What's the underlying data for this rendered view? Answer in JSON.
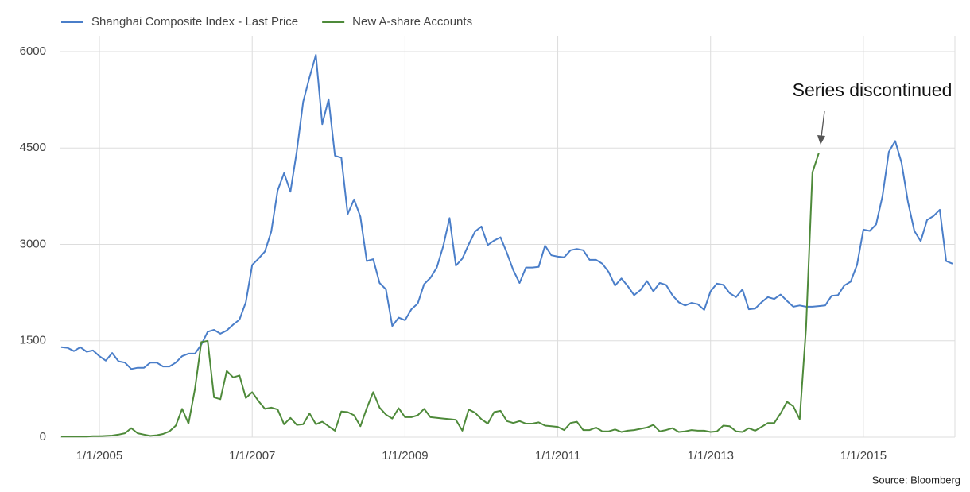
{
  "chart_data": {
    "type": "line",
    "categories": [
      null,
      null,
      null,
      null,
      null,
      null,
      "1/1/2005",
      null,
      null,
      null,
      null,
      null,
      null,
      null,
      null,
      null,
      null,
      null,
      null,
      null,
      null,
      null,
      null,
      null,
      null,
      null,
      null,
      null,
      null,
      null,
      "1/1/2007",
      null,
      null,
      null,
      null,
      null,
      null,
      null,
      null,
      null,
      null,
      null,
      null,
      null,
      null,
      null,
      null,
      null,
      null,
      null,
      null,
      null,
      null,
      null,
      "1/1/2009",
      null,
      null,
      null,
      null,
      null,
      null,
      null,
      null,
      null,
      null,
      null,
      null,
      null,
      null,
      null,
      null,
      null,
      null,
      null,
      null,
      null,
      null,
      null,
      "1/1/2011",
      null,
      null,
      null,
      null,
      null,
      null,
      null,
      null,
      null,
      null,
      null,
      null,
      null,
      null,
      null,
      null,
      null,
      null,
      null,
      null,
      null,
      null,
      null,
      "1/1/2013",
      null,
      null,
      null,
      null,
      null,
      null,
      null,
      null,
      null,
      null,
      null,
      null,
      null,
      null,
      null,
      null,
      null,
      null,
      null,
      null,
      null,
      null,
      null,
      "1/1/2015",
      null,
      null,
      null,
      null,
      null,
      null,
      null,
      null,
      null,
      null,
      null,
      null,
      null,
      null
    ],
    "series": [
      {
        "name": "Shanghai Composite Index - Last Price",
        "color": "#4a7ec9",
        "values": [
          1400,
          1390,
          1340,
          1400,
          1330,
          1350,
          1260,
          1190,
          1310,
          1180,
          1160,
          1060,
          1080,
          1080,
          1160,
          1160,
          1100,
          1100,
          1160,
          1260,
          1300,
          1300,
          1440,
          1640,
          1670,
          1610,
          1660,
          1750,
          1830,
          2100,
          2680,
          2780,
          2890,
          3200,
          3840,
          4110,
          3820,
          4450,
          5220,
          5600,
          5950,
          4870,
          5260,
          4380,
          4350,
          3470,
          3700,
          3430,
          2740,
          2770,
          2400,
          2300,
          1730,
          1860,
          1820,
          1990,
          2080,
          2380,
          2480,
          2640,
          2970,
          3410,
          2670,
          2780,
          3000,
          3200,
          3280,
          2990,
          3060,
          3110,
          2870,
          2600,
          2400,
          2640,
          2640,
          2650,
          2980,
          2830,
          2810,
          2800,
          2910,
          2930,
          2910,
          2760,
          2760,
          2700,
          2570,
          2360,
          2470,
          2350,
          2210,
          2290,
          2430,
          2270,
          2400,
          2370,
          2210,
          2100,
          2050,
          2090,
          2070,
          1980,
          2270,
          2390,
          2370,
          2240,
          2180,
          2300,
          1990,
          2000,
          2100,
          2180,
          2150,
          2220,
          2120,
          2030,
          2050,
          2030,
          2030,
          2040,
          2050,
          2200,
          2210,
          2360,
          2420,
          2680,
          3230,
          3210,
          3310,
          3750,
          4440,
          4610,
          4270,
          3660,
          3210,
          3050,
          3380,
          3440,
          3540,
          2740,
          2700
        ]
      },
      {
        "name": "New A-share Accounts",
        "color": "#4e8a3a",
        "values": [
          10,
          10,
          10,
          10,
          10,
          15,
          15,
          20,
          25,
          40,
          60,
          140,
          60,
          40,
          20,
          30,
          50,
          90,
          180,
          440,
          210,
          750,
          1480,
          1500,
          620,
          590,
          1030,
          930,
          960,
          610,
          700,
          560,
          440,
          460,
          430,
          200,
          300,
          190,
          200,
          370,
          200,
          240,
          170,
          100,
          400,
          390,
          340,
          170,
          450,
          700,
          460,
          350,
          290,
          450,
          310,
          310,
          340,
          440,
          310,
          300,
          290,
          280,
          270,
          100,
          430,
          380,
          280,
          210,
          390,
          410,
          250,
          220,
          250,
          210,
          210,
          230,
          180,
          170,
          160,
          110,
          220,
          240,
          110,
          110,
          150,
          90,
          90,
          120,
          80,
          100,
          110,
          130,
          150,
          190,
          90,
          110,
          140,
          80,
          90,
          110,
          100,
          100,
          80,
          90,
          180,
          170,
          90,
          80,
          140,
          100,
          160,
          220,
          220,
          370,
          550,
          480,
          280,
          1700,
          4120,
          4420,
          null,
          null,
          null,
          null,
          null,
          null,
          null,
          null,
          null,
          null,
          null,
          null,
          null,
          null,
          null,
          null,
          null,
          null,
          null,
          null,
          null
        ]
      }
    ],
    "ylim": [
      0,
      6000
    ],
    "yticks": [
      0,
      1500,
      3000,
      4500,
      6000
    ],
    "grid": true,
    "legend": "top",
    "annotation": "Series discontinued",
    "source": "Source: Bloomberg"
  }
}
